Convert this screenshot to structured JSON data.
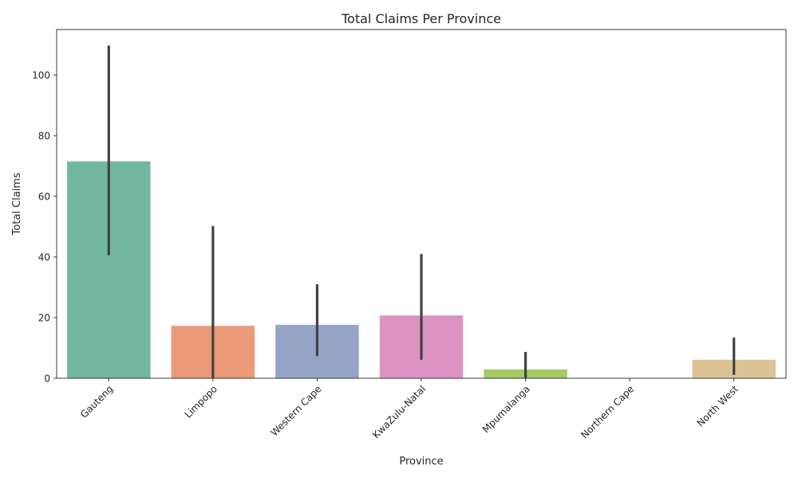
{
  "chart_data": {
    "type": "bar",
    "title": "Total Claims Per Province",
    "xlabel": "Province",
    "ylabel": "Total Claims",
    "ylim": [
      0,
      115
    ],
    "yticks": [
      0,
      20,
      40,
      60,
      80,
      100
    ],
    "grid": false,
    "categories": [
      "Gauteng",
      "Limpopo",
      "Western Cape",
      "KwaZulu-Natal",
      "Mpumalanga",
      "Northern Cape",
      "North West"
    ],
    "values": [
      71.5,
      17.3,
      17.6,
      20.7,
      2.9,
      0,
      6.1
    ],
    "error_low": [
      40.5,
      0,
      7.3,
      6.1,
      0,
      0,
      1.1
    ],
    "error_high": [
      109.7,
      50.2,
      31.0,
      41.0,
      8.7,
      0,
      13.4
    ],
    "colors": [
      "#72b6a0",
      "#ea9a76",
      "#95a4c6",
      "#dc93c2",
      "#a5cc64",
      "#f2d662",
      "#dcc396"
    ],
    "error_bar_color": "#424242"
  }
}
